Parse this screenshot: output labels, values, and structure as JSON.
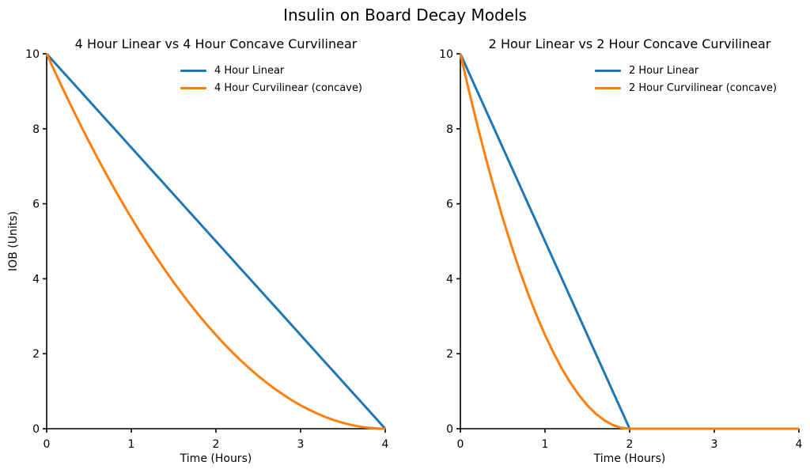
{
  "figure_title": "Insulin on Board Decay Models",
  "colors": {
    "linear_series": "#1f77b4",
    "curvilinear_series": "#ff7f0e",
    "axis": "#000000",
    "background": "#ffffff"
  },
  "chart_data": [
    {
      "type": "line",
      "title": "4 Hour Linear vs 4 Hour Concave Curvilinear",
      "xlabel": "Time (Hours)",
      "ylabel": "IOB (Units)",
      "xlim": [
        0,
        4
      ],
      "ylim": [
        0,
        10
      ],
      "xticks": [
        0,
        1,
        2,
        3,
        4
      ],
      "yticks": [
        0,
        2,
        4,
        6,
        8,
        10
      ],
      "grid": false,
      "legend_loc": "upper center",
      "x": [
        0,
        0.1,
        0.2,
        0.3,
        0.4,
        0.5,
        0.6,
        0.7,
        0.8,
        0.9,
        1,
        1.1,
        1.2,
        1.3,
        1.4,
        1.5,
        1.6,
        1.7,
        1.8,
        1.9,
        2,
        2.1,
        2.2,
        2.3,
        2.4,
        2.5,
        2.6,
        2.7,
        2.8,
        2.9,
        3,
        3.1,
        3.2,
        3.3,
        3.4,
        3.5,
        3.6,
        3.7,
        3.8,
        3.9,
        4
      ],
      "series": [
        {
          "name": "4 Hour Linear",
          "color": "#1f77b4",
          "values": [
            10,
            9.75,
            9.5,
            9.25,
            9,
            8.75,
            8.5,
            8.25,
            8,
            7.75,
            7.5,
            7.25,
            7,
            6.75,
            6.5,
            6.25,
            6,
            5.75,
            5.5,
            5.25,
            5,
            4.75,
            4.5,
            4.25,
            4,
            3.75,
            3.5,
            3.25,
            3,
            2.75,
            2.5,
            2.25,
            2,
            1.75,
            1.5,
            1.25,
            1,
            0.75,
            0.5,
            0.25,
            0
          ]
        },
        {
          "name": "4 Hour Curvilinear (concave)",
          "color": "#ff7f0e",
          "values": [
            10,
            9.506,
            9.025,
            8.556,
            8.1,
            7.656,
            7.225,
            6.806,
            6.4,
            6.006,
            5.625,
            5.256,
            4.9,
            4.556,
            4.225,
            3.906,
            3.6,
            3.306,
            3.025,
            2.756,
            2.5,
            2.256,
            2.025,
            1.806,
            1.6,
            1.406,
            1.225,
            1.056,
            0.9,
            0.756,
            0.625,
            0.506,
            0.4,
            0.306,
            0.225,
            0.156,
            0.1,
            0.056,
            0.025,
            0.006,
            0
          ]
        }
      ]
    },
    {
      "type": "line",
      "title": "2 Hour Linear vs 2 Hour Concave Curvilinear",
      "xlabel": "Time (Hours)",
      "ylabel": "",
      "xlim": [
        0,
        4
      ],
      "ylim": [
        0,
        10
      ],
      "xticks": [
        0,
        1,
        2,
        3,
        4
      ],
      "yticks": [
        0,
        2,
        4,
        6,
        8,
        10
      ],
      "grid": false,
      "legend_loc": "upper center",
      "x": [
        0,
        0.1,
        0.2,
        0.3,
        0.4,
        0.5,
        0.6,
        0.7,
        0.8,
        0.9,
        1,
        1.1,
        1.2,
        1.3,
        1.4,
        1.5,
        1.6,
        1.7,
        1.8,
        1.9,
        2,
        2.1,
        2.2,
        2.3,
        2.4,
        2.5,
        2.6,
        2.7,
        2.8,
        2.9,
        3,
        3.1,
        3.2,
        3.3,
        3.4,
        3.5,
        3.6,
        3.7,
        3.8,
        3.9,
        4
      ],
      "series": [
        {
          "name": "2 Hour Linear",
          "color": "#1f77b4",
          "values": [
            10,
            9.5,
            9,
            8.5,
            8,
            7.5,
            7,
            6.5,
            6,
            5.5,
            5,
            4.5,
            4,
            3.5,
            3,
            2.5,
            2,
            1.5,
            1,
            0.5,
            0,
            0,
            0,
            0,
            0,
            0,
            0,
            0,
            0,
            0,
            0,
            0,
            0,
            0,
            0,
            0,
            0,
            0,
            0,
            0,
            0
          ]
        },
        {
          "name": "2 Hour Curvilinear (concave)",
          "color": "#ff7f0e",
          "values": [
            10,
            9.025,
            8.1,
            7.225,
            6.4,
            5.625,
            4.9,
            4.225,
            3.6,
            3.025,
            2.5,
            2.025,
            1.6,
            1.225,
            0.9,
            0.625,
            0.4,
            0.225,
            0.1,
            0.025,
            0,
            0,
            0,
            0,
            0,
            0,
            0,
            0,
            0,
            0,
            0,
            0,
            0,
            0,
            0,
            0,
            0,
            0,
            0,
            0,
            0
          ]
        }
      ]
    }
  ]
}
